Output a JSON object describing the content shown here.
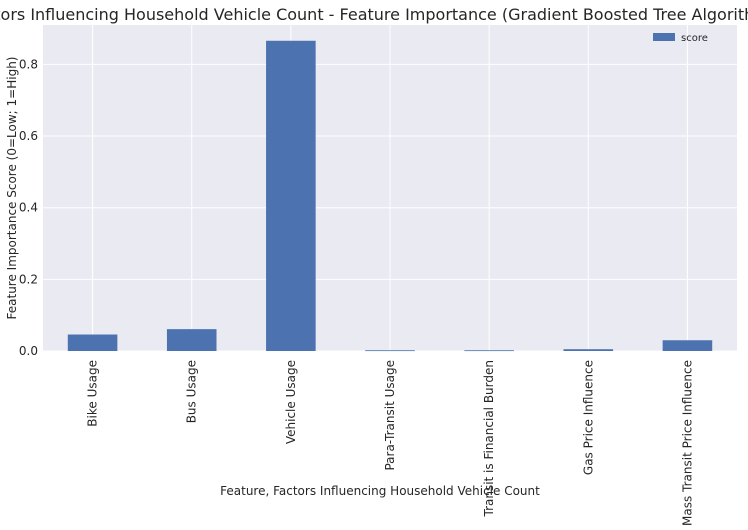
{
  "chart_data": {
    "type": "bar",
    "title": "Factors Influencing Household Vehicle Count - Feature Importance (Gradient Boosted Tree Algorithm)",
    "xlabel": "Feature, Factors Influencing Household Vehicle Count",
    "ylabel": "Feature Importance Score (0=Low; 1=High)",
    "categories": [
      "Bike Usage",
      "Bus Usage",
      "Vehicle Usage",
      "Para-Transit Usage",
      "Transit is Financial Burden",
      "Gas Price Influence",
      "Mass Transit Price Influence"
    ],
    "series": [
      {
        "name": "score",
        "values": [
          0.046,
          0.061,
          0.866,
          0.002,
          0.002,
          0.005,
          0.03
        ],
        "color": "#4C72B0"
      }
    ],
    "ylim": [
      0,
      0.91
    ],
    "yticks": [
      0.0,
      0.2,
      0.4,
      0.6,
      0.8
    ],
    "ytick_labels": [
      "0.0",
      "0.2",
      "0.4",
      "0.6",
      "0.8"
    ],
    "grid": true,
    "legend_position": "top-right",
    "style": {
      "background": "#EAEAF2",
      "grid_color": "#FFFFFF"
    }
  }
}
